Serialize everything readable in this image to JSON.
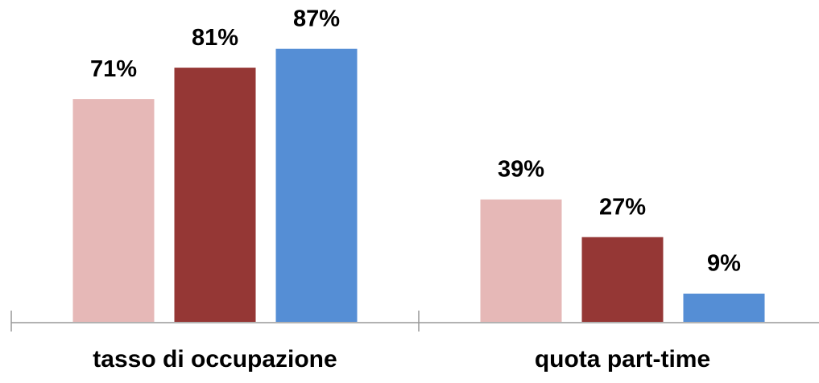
{
  "chart_data": {
    "type": "bar",
    "categories": [
      "tasso di occupazione",
      "quota part-time"
    ],
    "series": [
      {
        "color": "#e6b8b7",
        "values": [
          71,
          39
        ],
        "value_labels": [
          "71%",
          "39%"
        ]
      },
      {
        "color": "#953735",
        "values": [
          81,
          27
        ],
        "value_labels": [
          "81%",
          "27%"
        ]
      },
      {
        "color": "#558ed5",
        "values": [
          87,
          9
        ],
        "value_labels": [
          "87%",
          "9%"
        ]
      }
    ],
    "ylim": [
      0,
      100
    ],
    "grid": false
  }
}
